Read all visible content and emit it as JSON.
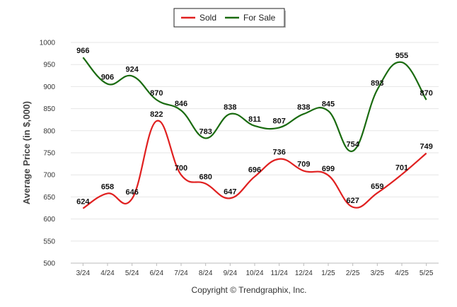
{
  "chart_data": {
    "type": "line",
    "categories": [
      "3/24",
      "4/24",
      "5/24",
      "6/24",
      "7/24",
      "8/24",
      "9/24",
      "10/24",
      "11/24",
      "12/24",
      "1/25",
      "2/25",
      "3/25",
      "4/25",
      "5/25"
    ],
    "series": [
      {
        "name": "Sold",
        "color": "#e02020",
        "values": [
          624,
          658,
          646,
          822,
          700,
          680,
          647,
          696,
          736,
          709,
          699,
          627,
          659,
          701,
          749
        ]
      },
      {
        "name": "For Sale",
        "color": "#1a6b10",
        "values": [
          966,
          906,
          924,
          870,
          846,
          783,
          838,
          811,
          807,
          838,
          845,
          754,
          893,
          955,
          870
        ]
      }
    ],
    "ylabel": "Average Price (in $,000)",
    "xlabel": "",
    "ylim": [
      500,
      1000
    ],
    "yticks": [
      500,
      550,
      600,
      650,
      700,
      750,
      800,
      850,
      900,
      950,
      1000
    ],
    "grid": true,
    "legend_position": "top-center",
    "footer": "Copyright © Trendgraphix, Inc."
  }
}
